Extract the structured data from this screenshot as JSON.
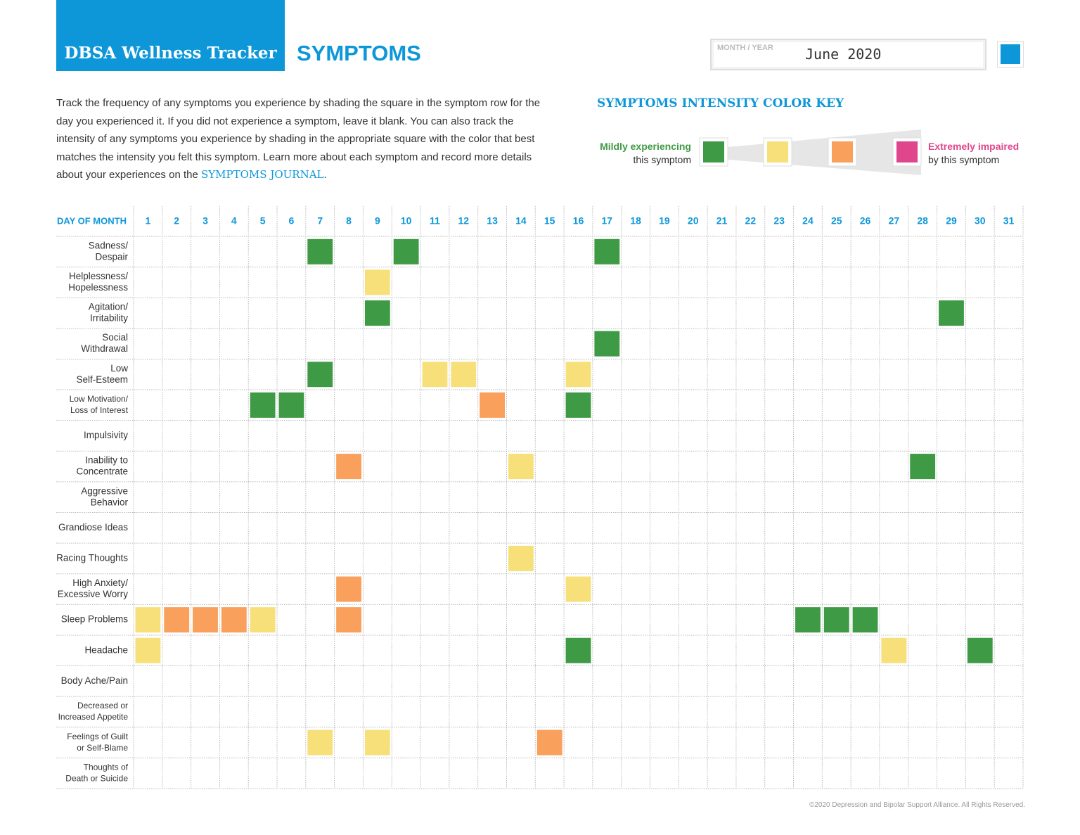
{
  "header": {
    "brand": "DBSA Wellness Tracker",
    "title": "SYMPTOMS",
    "month_year_label": "MONTH / YEAR",
    "month_year": "June 2020"
  },
  "intro": {
    "text": "Track the frequency of any symptoms you experience by shading the square in the symptom row for the day you experienced it. If you did not experience a symptom, leave it blank. You can also track the intensity of any symptoms you experience by shading in the appropriate square with the color that best matches the intensity you felt this symptom. Learn more about each symptom and record more details about your experiences on the ",
    "link": "SYMPTOMS JOURNAL",
    "end": "."
  },
  "key": {
    "title": "SYMPTOMS INTENSITY COLOR KEY",
    "low": [
      "Mildly experiencing",
      "this symptom"
    ],
    "high": [
      "Extremely impaired",
      "by this symptom"
    ],
    "colors": [
      "#3f9a45",
      "#f7e07a",
      "#f8a05c",
      "#e0468c"
    ]
  },
  "tracker": {
    "corner": "DAY OF MONTH",
    "days": [
      1,
      2,
      3,
      4,
      5,
      6,
      7,
      8,
      9,
      10,
      11,
      12,
      13,
      14,
      15,
      16,
      17,
      18,
      19,
      20,
      21,
      22,
      23,
      24,
      25,
      26,
      27,
      28,
      29,
      30,
      31
    ],
    "rows": [
      {
        "label": [
          "Sadness/",
          "Despair"
        ],
        "shaded": [
          {
            "day": 7,
            "color": "#3f9a45"
          },
          {
            "day": 10,
            "color": "#3f9a45"
          },
          {
            "day": 17,
            "color": "#3f9a45"
          }
        ]
      },
      {
        "label": [
          "Helplessness/",
          "Hopelessness"
        ],
        "shaded": [
          {
            "day": 9,
            "color": "#f7e07a"
          }
        ]
      },
      {
        "label": [
          "Agitation/",
          "Irritability"
        ],
        "shaded": [
          {
            "day": 9,
            "color": "#3f9a45"
          },
          {
            "day": 29,
            "color": "#3f9a45"
          }
        ]
      },
      {
        "label": [
          "Social",
          "Withdrawal"
        ],
        "shaded": [
          {
            "day": 17,
            "color": "#3f9a45"
          }
        ]
      },
      {
        "label": [
          "Low",
          "Self-Esteem"
        ],
        "shaded": [
          {
            "day": 7,
            "color": "#3f9a45"
          },
          {
            "day": 11,
            "color": "#f7e07a"
          },
          {
            "day": 12,
            "color": "#f7e07a"
          },
          {
            "day": 16,
            "color": "#f7e07a"
          }
        ]
      },
      {
        "label": [
          "Low Motivation/",
          "Loss of Interest"
        ],
        "shaded": [
          {
            "day": 5,
            "color": "#3f9a45"
          },
          {
            "day": 6,
            "color": "#3f9a45"
          },
          {
            "day": 13,
            "color": "#f8a05c"
          },
          {
            "day": 16,
            "color": "#3f9a45"
          }
        ]
      },
      {
        "label": [
          "Impulsivity"
        ],
        "shaded": []
      },
      {
        "label": [
          "Inability to",
          "Concentrate"
        ],
        "shaded": [
          {
            "day": 8,
            "color": "#f8a05c"
          },
          {
            "day": 14,
            "color": "#f7e07a"
          },
          {
            "day": 28,
            "color": "#3f9a45"
          }
        ]
      },
      {
        "label": [
          "Aggressive",
          "Behavior"
        ],
        "shaded": []
      },
      {
        "label": [
          "Grandiose Ideas"
        ],
        "shaded": []
      },
      {
        "label": [
          "Racing Thoughts"
        ],
        "shaded": [
          {
            "day": 14,
            "color": "#f7e07a"
          }
        ]
      },
      {
        "label": [
          "High Anxiety/",
          "Excessive Worry"
        ],
        "shaded": [
          {
            "day": 8,
            "color": "#f8a05c"
          },
          {
            "day": 16,
            "color": "#f7e07a"
          }
        ]
      },
      {
        "label": [
          "Sleep Problems"
        ],
        "shaded": [
          {
            "day": 1,
            "color": "#f7e07a"
          },
          {
            "day": 2,
            "color": "#f8a05c"
          },
          {
            "day": 3,
            "color": "#f8a05c"
          },
          {
            "day": 4,
            "color": "#f8a05c"
          },
          {
            "day": 5,
            "color": "#f7e07a"
          },
          {
            "day": 8,
            "color": "#f8a05c"
          },
          {
            "day": 24,
            "color": "#3f9a45"
          },
          {
            "day": 25,
            "color": "#3f9a45"
          },
          {
            "day": 26,
            "color": "#3f9a45"
          }
        ]
      },
      {
        "label": [
          "Headache"
        ],
        "shaded": [
          {
            "day": 1,
            "color": "#f7e07a"
          },
          {
            "day": 16,
            "color": "#3f9a45"
          },
          {
            "day": 27,
            "color": "#f7e07a"
          },
          {
            "day": 30,
            "color": "#3f9a45"
          }
        ]
      },
      {
        "label": [
          "Body Ache/Pain"
        ],
        "shaded": []
      },
      {
        "label": [
          "Decreased or",
          "Increased Appetite"
        ],
        "shaded": []
      },
      {
        "label": [
          "Feelings of Guilt",
          "or Self-Blame"
        ],
        "shaded": [
          {
            "day": 7,
            "color": "#f7e07a"
          },
          {
            "day": 9,
            "color": "#f7e07a"
          },
          {
            "day": 15,
            "color": "#f8a05c"
          }
        ]
      },
      {
        "label": [
          "Thoughts of",
          "Death or Suicide"
        ],
        "shaded": []
      }
    ]
  },
  "footer": "©2020 Depression and Bipolar Support Alliance. All Rights Reserved."
}
